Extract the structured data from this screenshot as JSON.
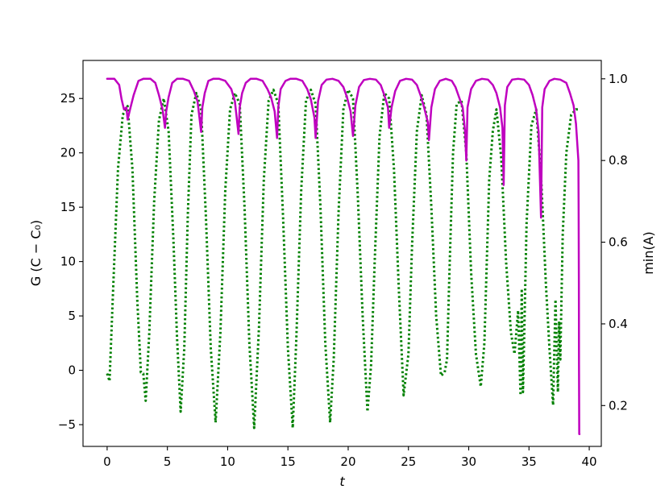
{
  "chart_data": {
    "type": "line",
    "title": "",
    "xlabel": "t",
    "ylabel_left": "G (C − C₀)",
    "ylabel_right": "min(A)",
    "xlim": [
      -2,
      41
    ],
    "ylim_left": [
      -7,
      28.5
    ],
    "ylim_right": [
      0.1,
      1.045
    ],
    "x_ticks": [
      0,
      5,
      10,
      15,
      20,
      25,
      30,
      35,
      40
    ],
    "y_left_ticks": [
      -5,
      0,
      5,
      10,
      15,
      20,
      25
    ],
    "y_right_ticks": [
      0.2,
      0.4,
      0.6,
      0.8,
      1.0
    ],
    "x_tick_labels": [
      "0",
      "5",
      "10",
      "15",
      "20",
      "25",
      "30",
      "35",
      "40"
    ],
    "y_left_tick_labels": [
      "−5",
      "0",
      "5",
      "10",
      "15",
      "20",
      "25"
    ],
    "y_right_tick_labels": [
      "0.2",
      "0.4",
      "0.6",
      "0.8",
      "1.0"
    ],
    "grid": false,
    "series": [
      {
        "axis": "left",
        "color": "#008000",
        "style": "dotted",
        "x": [
          0,
          0.2,
          0.5,
          0.9,
          1.3,
          1.7,
          2.1,
          2.5,
          2.8,
          3.0,
          3.2,
          3.5,
          3.9,
          4.3,
          4.7,
          5.1,
          5.5,
          5.8,
          6.1,
          6.4,
          6.7,
          7.0,
          7.4,
          7.8,
          8.2,
          8.6,
          9.0,
          9.4,
          9.8,
          10.2,
          10.6,
          11.0,
          11.4,
          11.8,
          12.2,
          12.6,
          13.0,
          13.4,
          13.8,
          14.2,
          14.6,
          15.0,
          15.4,
          15.7,
          16.1,
          16.5,
          16.9,
          17.3,
          17.7,
          18.1,
          18.5,
          18.8,
          19.2,
          19.6,
          20.0,
          20.4,
          20.8,
          21.2,
          21.6,
          21.9,
          22.2,
          22.6,
          23.0,
          23.4,
          23.8,
          24.2,
          24.6,
          25.0,
          25.3,
          25.7,
          26.1,
          26.5,
          26.9,
          27.3,
          27.7,
          28.0,
          28.2,
          28.4,
          28.7,
          29.0,
          29.4,
          29.8,
          30.2,
          30.6,
          31.0,
          31.3,
          31.5,
          31.7,
          32.0,
          32.3,
          32.7,
          33.1,
          33.5,
          33.8,
          34.1,
          34.3,
          34.4,
          34.5,
          34.6,
          34.8,
          35.2,
          35.6,
          36.0,
          36.4,
          36.7,
          37.0,
          37.2,
          37.4,
          37.5,
          37.6,
          37.8,
          38.1,
          38.5,
          38.9,
          39.1
        ],
        "y": [
          -0.3,
          -1.0,
          7.5,
          18.5,
          23.5,
          24.3,
          18.5,
          6.5,
          -0.2,
          -0.3,
          -2.8,
          3.5,
          15.5,
          23.0,
          25.0,
          22.0,
          12.0,
          3.0,
          -3.8,
          2.0,
          14.5,
          23.5,
          25.5,
          24.0,
          14.0,
          2.0,
          -4.8,
          3.5,
          16.5,
          24.0,
          25.5,
          24.5,
          15.0,
          2.5,
          -5.3,
          4.0,
          17.5,
          24.8,
          25.8,
          24.5,
          14.0,
          2.0,
          -5.3,
          3.0,
          16.5,
          24.8,
          25.8,
          24.5,
          15.0,
          2.5,
          -4.8,
          1.0,
          14.5,
          24.0,
          25.8,
          25.0,
          16.0,
          5.0,
          -3.8,
          0.5,
          10.0,
          21.5,
          25.5,
          25.0,
          18.5,
          7.5,
          -2.3,
          1.5,
          11.5,
          22.0,
          25.3,
          23.5,
          15.0,
          5.0,
          -0.5,
          -0.2,
          1.0,
          9.0,
          20.0,
          24.5,
          24.8,
          20.0,
          9.0,
          1.5,
          -1.5,
          2.5,
          10.0,
          17.5,
          22.0,
          24.0,
          19.5,
          10.0,
          3.5,
          1.5,
          5.5,
          -2.3,
          7.5,
          -2.0,
          3.0,
          13.5,
          22.5,
          24.0,
          18.0,
          8.0,
          2.0,
          -3.2,
          6.5,
          -2.0,
          4.5,
          1.0,
          12.5,
          20.0,
          23.5,
          24.0,
          24.0
        ]
      },
      {
        "axis": "right",
        "color": "#bf00bf",
        "style": "solid",
        "x": [
          0,
          0.6,
          1.0,
          1.2,
          1.4,
          1.6,
          1.7,
          1.9,
          2.2,
          2.6,
          3.0,
          3.6,
          4.0,
          4.3,
          4.6,
          4.8,
          4.9,
          5.1,
          5.4,
          5.8,
          6.3,
          6.8,
          7.2,
          7.5,
          7.8,
          7.9,
          8.1,
          8.4,
          8.8,
          9.3,
          9.8,
          10.3,
          10.6,
          10.9,
          11.0,
          11.2,
          11.5,
          11.9,
          12.4,
          12.9,
          13.3,
          13.6,
          13.9,
          14.1,
          14.2,
          14.4,
          14.8,
          15.2,
          15.7,
          16.2,
          16.6,
          16.9,
          17.2,
          17.3,
          17.5,
          17.8,
          18.2,
          18.7,
          19.2,
          19.6,
          19.9,
          20.2,
          20.4,
          20.6,
          20.9,
          21.3,
          21.8,
          22.3,
          22.7,
          23.0,
          23.3,
          23.4,
          23.6,
          23.9,
          24.3,
          24.8,
          25.3,
          25.7,
          26.0,
          26.3,
          26.6,
          26.7,
          26.9,
          27.2,
          27.6,
          28.1,
          28.6,
          28.9,
          29.2,
          29.5,
          29.7,
          29.8,
          29.9,
          30.2,
          30.6,
          31.1,
          31.6,
          32.0,
          32.3,
          32.6,
          32.8,
          32.9,
          33.0,
          33.2,
          33.6,
          34.1,
          34.6,
          35.0,
          35.3,
          35.6,
          35.8,
          36.0,
          36.1,
          36.3,
          36.7,
          37.1,
          37.6,
          38.1,
          38.4,
          38.7,
          38.9,
          39.1,
          39.12,
          39.14,
          39.15,
          39.17,
          39.19
        ],
        "y": [
          1.0,
          1.0,
          0.985,
          0.95,
          0.925,
          0.93,
          0.9,
          0.925,
          0.96,
          0.995,
          1.0,
          1.0,
          0.99,
          0.96,
          0.925,
          0.88,
          0.92,
          0.955,
          0.99,
          1.0,
          1.0,
          0.995,
          0.97,
          0.945,
          0.87,
          0.93,
          0.965,
          0.995,
          1.0,
          1.0,
          0.995,
          0.975,
          0.945,
          0.865,
          0.93,
          0.965,
          0.99,
          1.0,
          1.0,
          0.995,
          0.975,
          0.955,
          0.92,
          0.855,
          0.93,
          0.975,
          0.995,
          1.0,
          1.0,
          0.995,
          0.975,
          0.95,
          0.905,
          0.855,
          0.945,
          0.985,
          0.998,
          1.0,
          0.995,
          0.98,
          0.955,
          0.92,
          0.86,
          0.935,
          0.98,
          0.997,
          1.0,
          0.998,
          0.985,
          0.96,
          0.93,
          0.88,
          0.93,
          0.97,
          0.995,
          1.0,
          0.998,
          0.985,
          0.96,
          0.93,
          0.895,
          0.85,
          0.93,
          0.975,
          0.995,
          1.0,
          0.995,
          0.98,
          0.955,
          0.93,
          0.87,
          0.8,
          0.93,
          0.975,
          0.995,
          1.0,
          0.998,
          0.985,
          0.965,
          0.93,
          0.88,
          0.74,
          0.935,
          0.98,
          0.998,
          1.0,
          0.998,
          0.985,
          0.96,
          0.925,
          0.87,
          0.66,
          0.93,
          0.975,
          0.995,
          1.0,
          0.998,
          0.99,
          0.965,
          0.935,
          0.89,
          0.8,
          0.68,
          0.5,
          0.3,
          0.13,
          0.13
        ]
      }
    ]
  }
}
